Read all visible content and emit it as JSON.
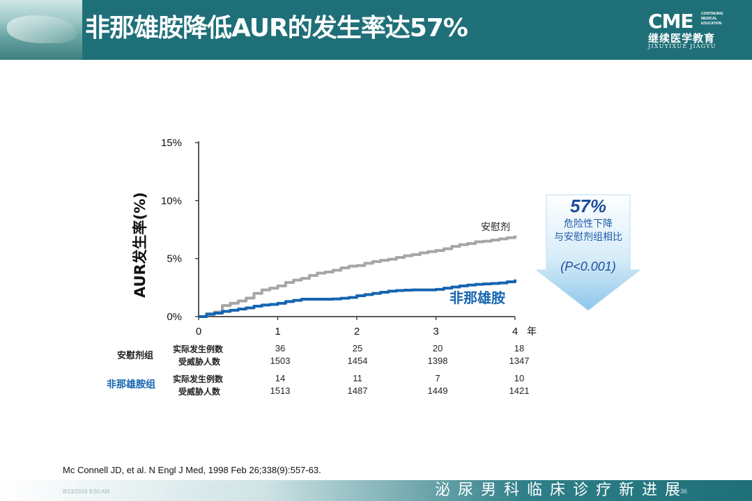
{
  "slide": {
    "title": "非那雄胺降低AUR的发生率达57%",
    "logo": {
      "big": "CME",
      "sub": [
        "CONTINUING",
        "MEDICAL",
        "EDUCATION"
      ],
      "cn": "继续医学教育",
      "pinyin": "JIXUYIXUE JIAGYU"
    },
    "citation": "Mc Connell JD, et al. N Engl J Med, 1998 Feb 26;338(9):557-63.",
    "footer": {
      "date": "8/13/2018 9:50 AM",
      "page": "36",
      "slogan": "泌尿男科临床诊疗新进展"
    }
  },
  "chart_data": {
    "type": "line",
    "ylabel": "AUR发生率(%)",
    "xunit": "年",
    "x_ticks": [
      "0",
      "1",
      "2",
      "3",
      "4"
    ],
    "y_ticks": [
      "0%",
      "5%",
      "10%",
      "15%"
    ],
    "xlim": [
      0,
      4
    ],
    "ylim": [
      0,
      15
    ],
    "colors": {
      "placebo": "#a6a6a6",
      "finasteride": "#1565b0"
    },
    "series": [
      {
        "name": "安慰剂",
        "x": [
          0,
          0.1,
          0.2,
          0.3,
          0.4,
          0.5,
          0.6,
          0.7,
          0.8,
          0.9,
          1.0,
          1.1,
          1.2,
          1.3,
          1.4,
          1.5,
          1.6,
          1.7,
          1.8,
          1.9,
          2.0,
          2.1,
          2.2,
          2.3,
          2.4,
          2.5,
          2.6,
          2.7,
          2.8,
          2.9,
          3.0,
          3.1,
          3.2,
          3.3,
          3.4,
          3.5,
          3.6,
          3.7,
          3.8,
          3.9,
          4.0
        ],
        "y": [
          0,
          0.25,
          0.4,
          0.95,
          1.15,
          1.35,
          1.6,
          2.0,
          2.3,
          2.45,
          2.65,
          2.95,
          3.15,
          3.3,
          3.55,
          3.75,
          3.85,
          4.0,
          4.2,
          4.35,
          4.4,
          4.6,
          4.75,
          4.85,
          4.95,
          5.1,
          5.25,
          5.35,
          5.5,
          5.6,
          5.7,
          5.85,
          6.05,
          6.2,
          6.3,
          6.45,
          6.5,
          6.6,
          6.7,
          6.8,
          7.0
        ]
      },
      {
        "name": "非那雄胺",
        "x": [
          0,
          0.1,
          0.2,
          0.3,
          0.4,
          0.5,
          0.6,
          0.7,
          0.8,
          0.9,
          1.0,
          1.1,
          1.2,
          1.3,
          1.4,
          1.5,
          1.6,
          1.7,
          1.8,
          1.9,
          2.0,
          2.1,
          2.2,
          2.3,
          2.4,
          2.5,
          2.6,
          2.7,
          2.8,
          2.9,
          3.0,
          3.1,
          3.2,
          3.3,
          3.4,
          3.5,
          3.6,
          3.7,
          3.8,
          3.9,
          4.0
        ],
        "y": [
          0,
          0.2,
          0.3,
          0.45,
          0.55,
          0.65,
          0.75,
          0.9,
          1.0,
          1.05,
          1.15,
          1.3,
          1.4,
          1.5,
          1.5,
          1.5,
          1.5,
          1.52,
          1.58,
          1.65,
          1.8,
          1.9,
          2.0,
          2.1,
          2.2,
          2.25,
          2.28,
          2.3,
          2.3,
          2.3,
          2.35,
          2.45,
          2.55,
          2.65,
          2.72,
          2.78,
          2.82,
          2.86,
          2.9,
          3.0,
          3.2
        ]
      }
    ],
    "annotation": {
      "percent": "57%",
      "line1": "危险性下降",
      "line2": "与安慰剂组相比",
      "p_value": "(P<0.001)"
    },
    "risk_table": {
      "row_labels": [
        "实际发生例数",
        "受威胁人数"
      ],
      "groups": [
        {
          "name": "安慰剂组",
          "events": [
            "36",
            "25",
            "20",
            "18"
          ],
          "at_risk": [
            "1503",
            "1454",
            "1398",
            "1347"
          ]
        },
        {
          "name": "非那雄胺组",
          "events": [
            "14",
            "11",
            "7",
            "10"
          ],
          "at_risk": [
            "1513",
            "1487",
            "1449",
            "1421"
          ]
        }
      ]
    }
  }
}
